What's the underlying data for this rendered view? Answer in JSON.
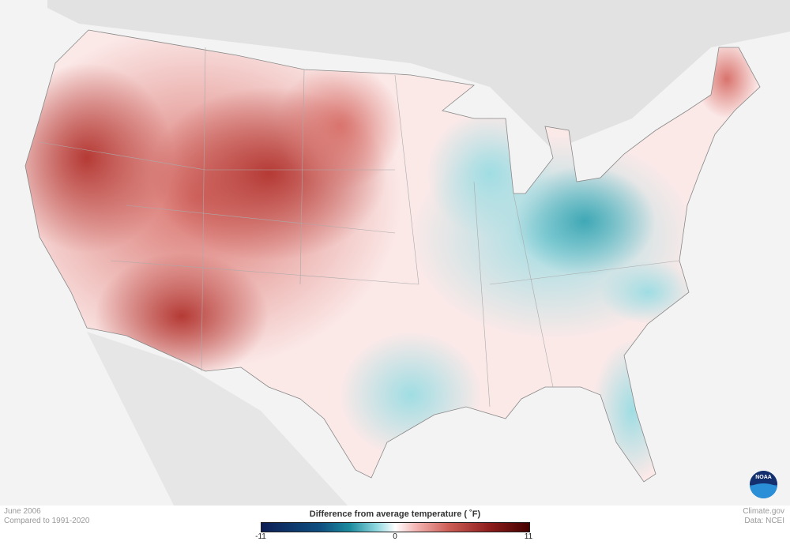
{
  "caption": {
    "date": "June 2006",
    "baseline": "Compared to 1991-2020"
  },
  "credits": {
    "site": "Climate.gov",
    "data": "Data: NCEI"
  },
  "legend": {
    "title": "Difference from average temperature  ( ˚F)",
    "min_label": "-11",
    "mid_label": "0",
    "max_label": "11",
    "range": [
      -11,
      11
    ],
    "colors": {
      "cold": "#0d1f55",
      "neutral": "#ffffff",
      "warm": "#440000"
    }
  },
  "map": {
    "region": "Contiguous United States",
    "pattern": {
      "warm_anomaly": "West, Rockies and Plains",
      "cool_anomaly": "Ohio Valley, Southeast and Texas coast"
    }
  },
  "logo": {
    "text": "NOAA"
  }
}
